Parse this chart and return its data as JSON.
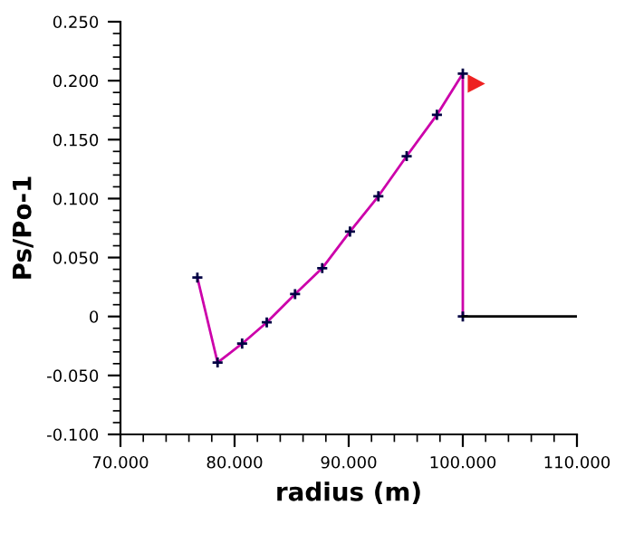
{
  "chart_data": {
    "type": "line",
    "xlabel": "radius (m)",
    "ylabel": "Ps/Po-1",
    "xlim": [
      70,
      110
    ],
    "xticks": [
      {
        "value": 70,
        "label": "70.000"
      },
      {
        "value": 80,
        "label": "80.000"
      },
      {
        "value": 90,
        "label": "90.000"
      },
      {
        "value": 100,
        "label": "100.000"
      },
      {
        "value": 110,
        "label": "110.000"
      }
    ],
    "ylim": [
      -0.1,
      0.25
    ],
    "yticks": [
      {
        "value": -0.1,
        "label": "-0.100"
      },
      {
        "value": -0.05,
        "label": "-0.050"
      },
      {
        "value": 0,
        "label": "0"
      },
      {
        "value": 0.05,
        "label": "0.050"
      },
      {
        "value": 0.1,
        "label": "0.100"
      },
      {
        "value": 0.15,
        "label": "0.150"
      },
      {
        "value": 0.2,
        "label": "0.200"
      },
      {
        "value": 0.25,
        "label": "0.250"
      }
    ],
    "grid": false,
    "legend": false,
    "series": [
      {
        "color": "#cc00aa",
        "marker": "cross",
        "x": [
          76.74,
          78.51,
          80.66,
          82.82,
          85.3,
          87.68,
          90.11,
          92.6,
          95.08,
          97.73,
          100,
          100
        ],
        "values": [
          0.033,
          -0.039,
          -0.023,
          -0.005,
          0.019,
          0.041,
          0.072,
          0.102,
          0.136,
          0.171,
          0.206,
          0
        ]
      },
      {
        "color": "#000000",
        "marker": "none",
        "x": [
          100,
          110
        ],
        "values": [
          0,
          0
        ]
      }
    ]
  }
}
